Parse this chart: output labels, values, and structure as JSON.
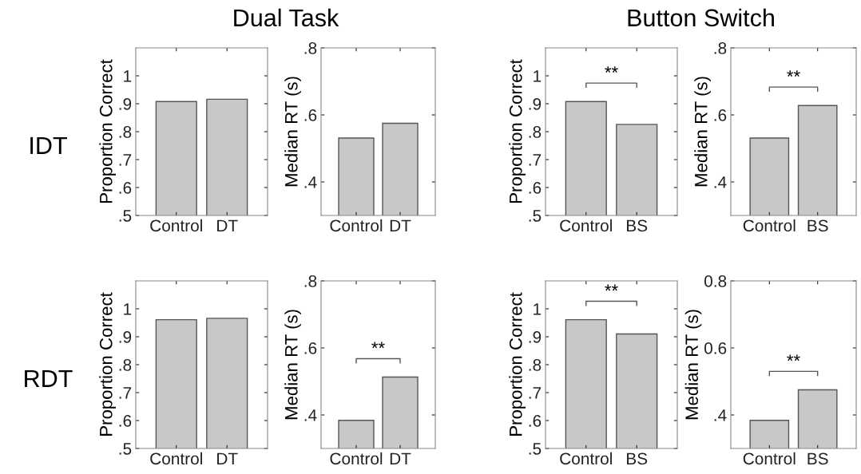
{
  "chart_data": [
    {
      "type": "bar",
      "title": "Dual Task",
      "annotations": [
        "IDT"
      ],
      "ylabel": "Proportion Correct",
      "categories": [
        "Control",
        "DT"
      ],
      "values": [
        0.908,
        0.916
      ],
      "color": "#c8c8c8",
      "ylim": [
        0.5,
        1.1
      ],
      "yticks": [
        {
          "value": 0.5,
          "label": ".5"
        },
        {
          "value": 0.6,
          "label": ".6"
        },
        {
          "value": 0.7,
          "label": ".7"
        },
        {
          "value": 0.8,
          "label": ".8"
        },
        {
          "value": 0.9,
          "label": ".9"
        },
        1
      ],
      "grid": false
    },
    {
      "type": "bar",
      "ylabel": "Median RT (s)",
      "categories": [
        "Control",
        "DT"
      ],
      "values": [
        0.531,
        0.575
      ],
      "color": "#c8c8c8",
      "ylim": [
        0.3,
        0.8
      ],
      "yticks": [
        {
          "value": 0.4,
          "label": ".4"
        },
        {
          "value": 0.6,
          "label": ".6"
        },
        {
          "value": 0.8,
          "label": ".8"
        }
      ],
      "grid": false
    },
    {
      "type": "bar",
      "title": "Button Switch",
      "annotations": [
        "**"
      ],
      "ylabel": "Proportion Correct",
      "categories": [
        "Control",
        "BS"
      ],
      "values": [
        0.908,
        0.826
      ],
      "color": "#c8c8c8",
      "ylim": [
        0.5,
        1.1
      ],
      "yticks": [
        {
          "value": 0.5,
          "label": ".5"
        },
        {
          "value": 0.6,
          "label": ".6"
        },
        {
          "value": 0.7,
          "label": ".7"
        },
        {
          "value": 0.8,
          "label": ".8"
        },
        {
          "value": 0.9,
          "label": ".9"
        },
        1
      ],
      "grid": false
    },
    {
      "type": "bar",
      "annotations": [
        "**"
      ],
      "ylabel": "Median RT (s)",
      "categories": [
        "Control",
        "BS"
      ],
      "values": [
        0.531,
        0.628
      ],
      "color": "#c8c8c8",
      "ylim": [
        0.3,
        0.8
      ],
      "yticks": [
        {
          "value": 0.4,
          "label": ".4"
        },
        {
          "value": 0.6,
          "label": ".6"
        },
        {
          "value": 0.8,
          "label": ".8"
        }
      ],
      "grid": false
    },
    {
      "type": "bar",
      "annotations": [
        "RDT"
      ],
      "ylabel": "Proportion Correct",
      "categories": [
        "Control",
        "DT"
      ],
      "values": [
        0.961,
        0.966
      ],
      "color": "#c8c8c8",
      "ylim": [
        0.5,
        1.1
      ],
      "yticks": [
        {
          "value": 0.5,
          "label": ".5"
        },
        {
          "value": 0.6,
          "label": ".6"
        },
        {
          "value": 0.7,
          "label": ".7"
        },
        {
          "value": 0.8,
          "label": ".8"
        },
        {
          "value": 0.9,
          "label": ".9"
        },
        1
      ],
      "grid": false
    },
    {
      "type": "bar",
      "annotations": [
        "**"
      ],
      "ylabel": "Median RT (s)",
      "categories": [
        "Control",
        "DT"
      ],
      "values": [
        0.384,
        0.513
      ],
      "color": "#c8c8c8",
      "ylim": [
        0.3,
        0.8
      ],
      "yticks": [
        {
          "value": 0.4,
          "label": ".4"
        },
        {
          "value": 0.6,
          "label": ".6"
        },
        {
          "value": 0.8,
          "label": ".8"
        }
      ],
      "grid": false
    },
    {
      "type": "bar",
      "annotations": [
        "**"
      ],
      "ylabel": "Proportion Correct",
      "categories": [
        "Control",
        "BS"
      ],
      "values": [
        0.961,
        0.91
      ],
      "color": "#c8c8c8",
      "ylim": [
        0.5,
        1.1
      ],
      "yticks": [
        {
          "value": 0.5,
          "label": ".5"
        },
        {
          "value": 0.6,
          "label": ".6"
        },
        {
          "value": 0.7,
          "label": ".7"
        },
        {
          "value": 0.8,
          "label": ".8"
        },
        {
          "value": 0.9,
          "label": ".9"
        },
        1
      ],
      "grid": false
    },
    {
      "type": "bar",
      "annotations": [
        "**"
      ],
      "ylabel": "Median RT (s)",
      "categories": [
        "Control",
        "BS"
      ],
      "values": [
        0.384,
        0.475
      ],
      "color": "#c8c8c8",
      "ylim": [
        0.3,
        0.8
      ],
      "yticks": [
        {
          "value": 0.4,
          "label": ".4"
        },
        0.6,
        0.8
      ],
      "grid": false
    }
  ]
}
